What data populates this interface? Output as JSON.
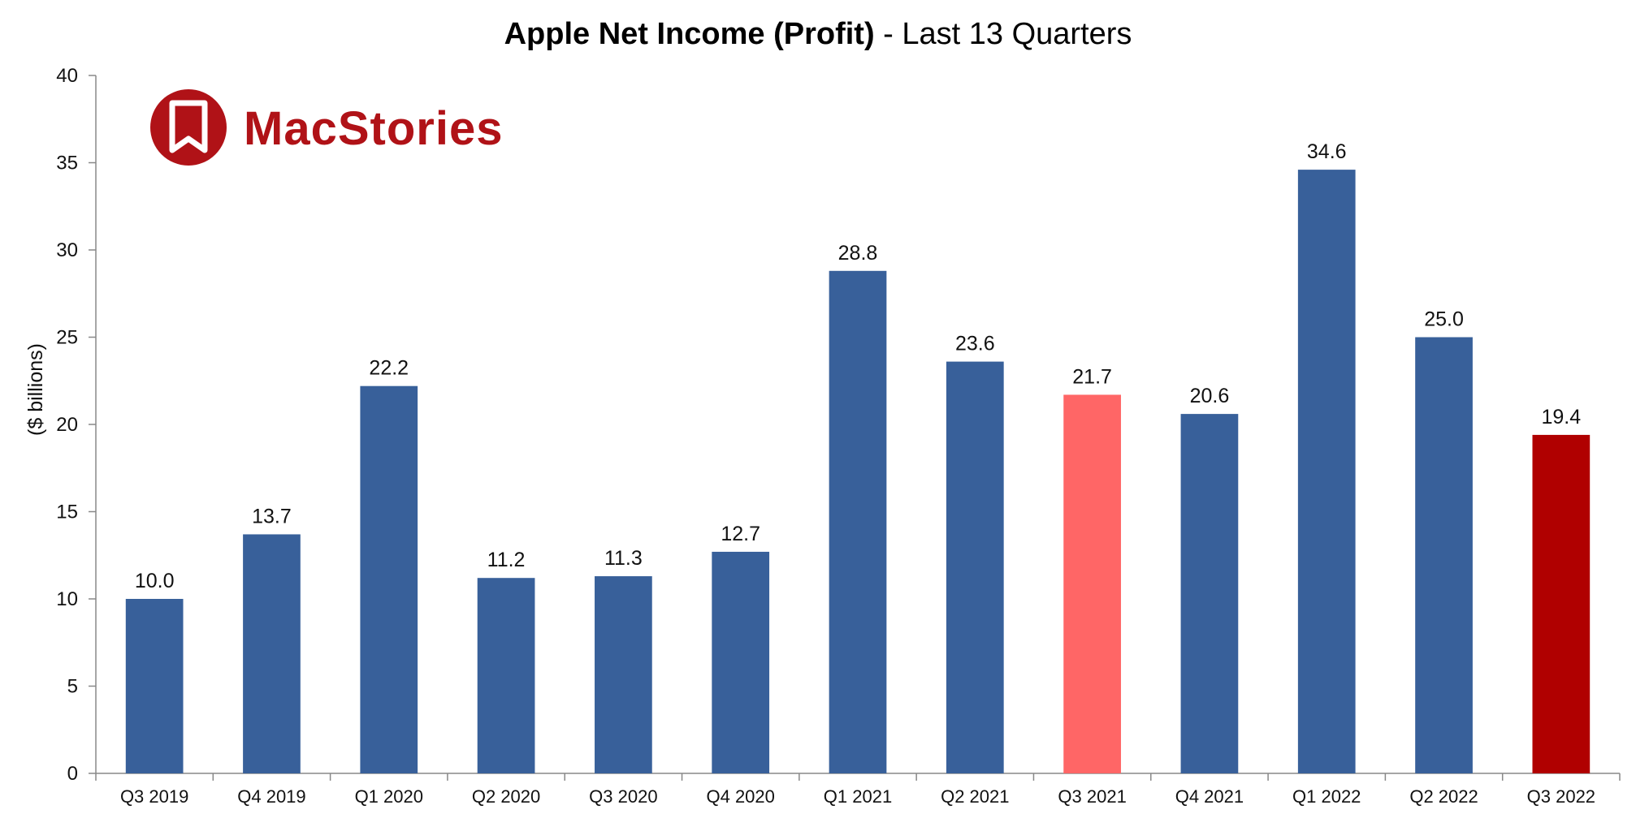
{
  "chart_data": {
    "type": "bar",
    "title_bold": "Apple Net Income (Profit)",
    "title_rest": " - Last 13 Quarters",
    "ylabel": "($ billions)",
    "xlabel": "",
    "ylim": [
      0,
      40
    ],
    "yticks": [
      "0",
      "5",
      "10",
      "15",
      "20",
      "25",
      "30",
      "35",
      "40"
    ],
    "categories": [
      "Q3 2019",
      "Q4 2019",
      "Q1 2020",
      "Q2 2020",
      "Q3 2020",
      "Q4 2020",
      "Q1 2021",
      "Q2 2021",
      "Q3 2021",
      "Q4 2021",
      "Q1 2022",
      "Q2 2022",
      "Q3 2022"
    ],
    "values": [
      10.0,
      13.7,
      22.2,
      11.2,
      11.3,
      12.7,
      28.8,
      23.6,
      21.7,
      20.6,
      34.6,
      25.0,
      19.4
    ],
    "value_labels": [
      "10.0",
      "13.7",
      "22.2",
      "11.2",
      "11.3",
      "12.7",
      "28.8",
      "23.6",
      "21.7",
      "20.6",
      "34.6",
      "25.0",
      "19.4"
    ],
    "colors": [
      "#38609a",
      "#38609a",
      "#38609a",
      "#38609a",
      "#38609a",
      "#38609a",
      "#38609a",
      "#38609a",
      "#ff6666",
      "#38609a",
      "#38609a",
      "#38609a",
      "#b00000"
    ],
    "grid": false,
    "legend": "none"
  },
  "logo": {
    "text": "MacStories",
    "icon": "bookmark-circle-icon",
    "color": "#b01217"
  }
}
